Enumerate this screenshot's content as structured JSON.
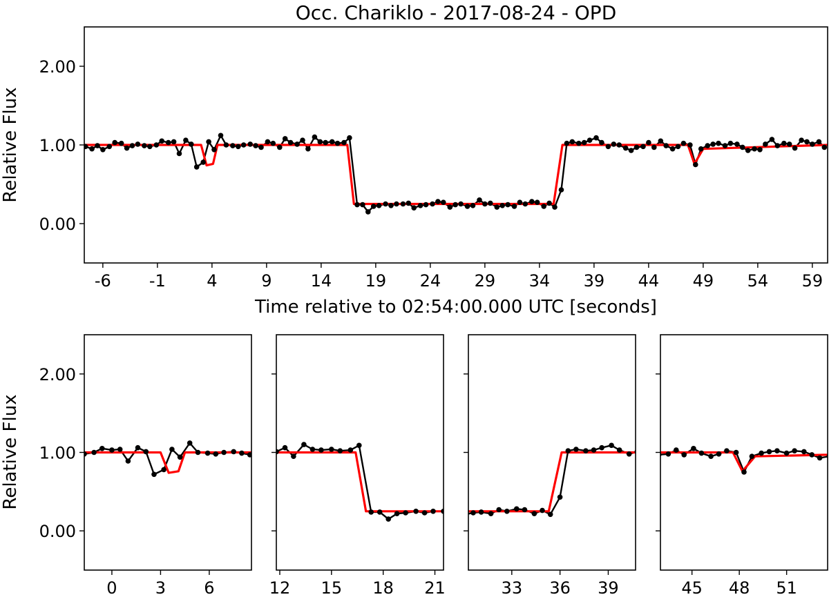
{
  "figure_title": "Occ. Chariklo - 2017-08-24 - OPD",
  "colors": {
    "data": "#000000",
    "model": "#ff0000",
    "axes": "#000000"
  },
  "chart_data": [
    {
      "type": "line",
      "panel": "overview",
      "title": "Occ. Chariklo - 2017-08-24 - OPD",
      "xlabel": "Time relative to 02:54:00.000 UTC [seconds]",
      "ylabel": "Relative Flux",
      "xlim": [
        -7.7,
        60.4
      ],
      "ylim": [
        -0.5,
        2.5
      ],
      "xticks": [
        -6,
        -1,
        4,
        9,
        14,
        19,
        24,
        29,
        34,
        39,
        44,
        49,
        54,
        59
      ],
      "yticks": [
        2.0,
        1.0,
        0.0
      ],
      "ytick_labels": [
        "2.00",
        "1.00",
        "0.00"
      ],
      "grid": false,
      "series": [
        {
          "role": "observations",
          "marker": "dot",
          "color": "#000000",
          "x": [
            -7.6,
            -7.0,
            -6.5,
            -6.0,
            -5.4,
            -4.9,
            -4.3,
            -3.8,
            -3.3,
            -2.8,
            -2.2,
            -1.7,
            -1.1,
            -0.6,
            0.0,
            0.5,
            1.0,
            1.6,
            2.1,
            2.6,
            3.2,
            3.7,
            4.2,
            4.8,
            5.3,
            5.9,
            6.4,
            6.9,
            7.5,
            8.0,
            8.5,
            9.1,
            9.6,
            10.2,
            10.7,
            11.2,
            11.8,
            12.3,
            12.8,
            13.4,
            13.9,
            14.4,
            15.0,
            15.5,
            16.1,
            16.6,
            17.3,
            17.8,
            18.3,
            18.8,
            19.3,
            19.9,
            20.4,
            20.9,
            21.5,
            22.0,
            22.5,
            23.1,
            23.6,
            24.2,
            24.7,
            25.2,
            25.8,
            26.3,
            26.8,
            27.4,
            27.9,
            28.5,
            29.0,
            29.5,
            30.1,
            30.6,
            31.1,
            31.7,
            32.2,
            32.7,
            33.3,
            33.8,
            34.4,
            34.9,
            35.4,
            36.0,
            36.5,
            37.0,
            37.6,
            38.1,
            38.6,
            39.2,
            39.7,
            40.3,
            40.8,
            41.3,
            41.9,
            42.4,
            42.9,
            43.5,
            44.0,
            44.5,
            45.1,
            45.6,
            46.2,
            46.7,
            47.2,
            47.8,
            48.3,
            48.8,
            49.4,
            49.9,
            50.4,
            51.0,
            51.5,
            52.1,
            52.6,
            53.1,
            53.7,
            54.2,
            54.7,
            55.3,
            55.8,
            56.4,
            56.9,
            57.4,
            58.0,
            58.5,
            59.0,
            59.6,
            60.1
          ],
          "y": [
            0.98,
            0.95,
            0.99,
            0.94,
            0.98,
            1.03,
            1.02,
            0.96,
            0.99,
            1.01,
            0.99,
            0.98,
            1.0,
            1.05,
            1.03,
            1.04,
            0.89,
            1.06,
            1.01,
            0.72,
            0.78,
            1.04,
            0.94,
            1.12,
            1.0,
            0.99,
            0.98,
            1.0,
            1.01,
            0.99,
            0.97,
            1.04,
            1.02,
            0.97,
            1.08,
            1.03,
            1.01,
            1.06,
            0.95,
            1.1,
            1.04,
            1.03,
            1.04,
            1.02,
            1.03,
            1.09,
            0.24,
            0.24,
            0.15,
            0.22,
            0.23,
            0.25,
            0.23,
            0.25,
            0.25,
            0.26,
            0.2,
            0.23,
            0.24,
            0.25,
            0.28,
            0.27,
            0.21,
            0.24,
            0.25,
            0.22,
            0.23,
            0.3,
            0.25,
            0.26,
            0.21,
            0.23,
            0.24,
            0.22,
            0.27,
            0.25,
            0.28,
            0.27,
            0.22,
            0.26,
            0.21,
            0.43,
            1.02,
            1.04,
            1.02,
            1.03,
            1.06,
            1.09,
            1.03,
            0.98,
            1.01,
            1.0,
            0.96,
            0.93,
            0.97,
            0.98,
            1.03,
            0.97,
            1.05,
            0.99,
            0.95,
            0.98,
            1.02,
            1.0,
            0.75,
            0.95,
            0.99,
            1.01,
            1.02,
            0.99,
            1.02,
            1.01,
            0.97,
            0.93,
            0.95,
            0.94,
            1.01,
            1.07,
            0.99,
            1.02,
            1.01,
            0.96,
            1.06,
            1.04,
            1.01,
            1.04,
            0.97
          ]
        },
        {
          "role": "model",
          "color": "#ff0000",
          "x": [
            -7.7,
            3.0,
            3.5,
            4.1,
            4.5,
            16.4,
            17.0,
            35.3,
            36.1,
            47.6,
            48.2,
            49.0,
            60.4
          ],
          "y": [
            1.0,
            1.0,
            0.74,
            0.76,
            1.0,
            1.0,
            0.25,
            0.25,
            1.0,
            1.0,
            0.76,
            0.95,
            1.0
          ]
        }
      ]
    },
    {
      "type": "line",
      "panel": "zoom-1",
      "ylabel": "Relative Flux",
      "xlim": [
        -1.7,
        8.6
      ],
      "ylim": [
        -0.5,
        2.5
      ],
      "xticks": [
        0,
        3,
        6
      ],
      "yticks": [
        2.0,
        1.0,
        0.0
      ],
      "ytick_labels": [
        "2.00",
        "1.00",
        "0.00"
      ],
      "grid": false,
      "series_ref": "overview"
    },
    {
      "type": "line",
      "panel": "zoom-2",
      "xlim": [
        11.8,
        21.5
      ],
      "ylim": [
        -0.5,
        2.5
      ],
      "xticks": [
        12,
        15,
        18,
        21
      ],
      "grid": false,
      "series_ref": "overview"
    },
    {
      "type": "line",
      "panel": "zoom-3",
      "xlim": [
        30.3,
        40.7
      ],
      "ylim": [
        -0.5,
        2.5
      ],
      "xticks": [
        33,
        36,
        39
      ],
      "grid": false,
      "series_ref": "overview"
    },
    {
      "type": "line",
      "panel": "zoom-4",
      "xlim": [
        43.0,
        53.6
      ],
      "ylim": [
        -0.5,
        2.5
      ],
      "xticks": [
        45,
        48,
        51
      ],
      "grid": false,
      "series_ref": "overview"
    }
  ]
}
